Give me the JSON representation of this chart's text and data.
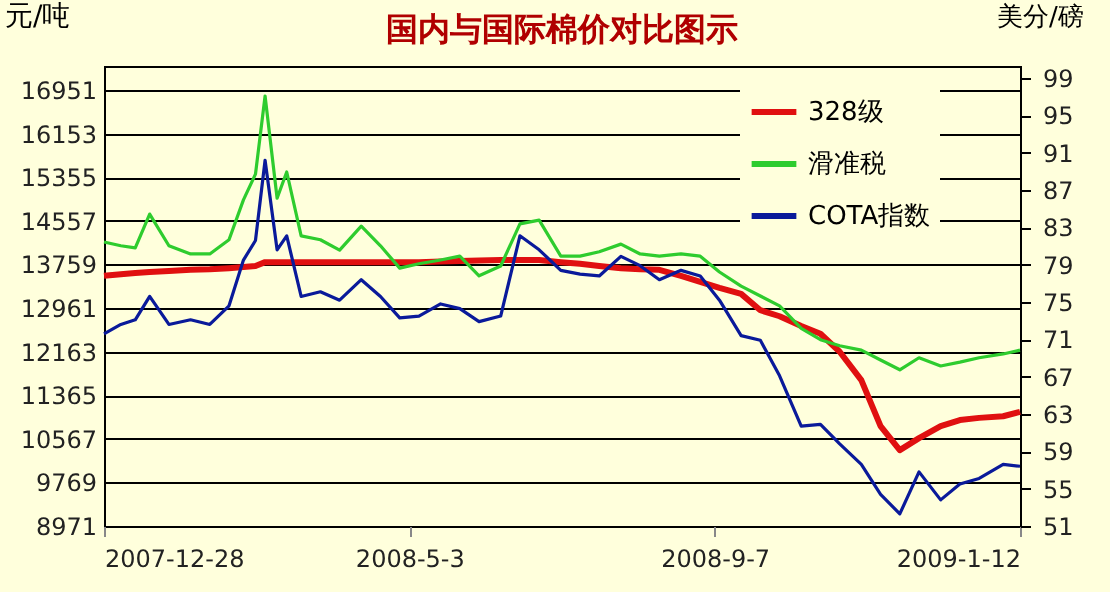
{
  "chart_data": {
    "type": "line",
    "title": "国内与国际棉价对比图示",
    "ylabel": "元/吨",
    "y2label": "美分/磅",
    "x": [
      "2007-12-28",
      "2008-01-04",
      "2008-01-10",
      "2008-01-16",
      "2008-01-24",
      "2008-02-02",
      "2008-02-10",
      "2008-02-18",
      "2008-02-24",
      "2008-02-29",
      "2008-03-04",
      "2008-03-09",
      "2008-03-13",
      "2008-03-19",
      "2008-03-27",
      "2008-04-04",
      "2008-04-13",
      "2008-04-21",
      "2008-04-29",
      "2008-05-07",
      "2008-05-16",
      "2008-05-24",
      "2008-06-01",
      "2008-06-10",
      "2008-06-18",
      "2008-06-26",
      "2008-07-05",
      "2008-07-13",
      "2008-07-21",
      "2008-07-30",
      "2008-08-07",
      "2008-08-15",
      "2008-08-24",
      "2008-09-01",
      "2008-09-09",
      "2008-09-18",
      "2008-09-26",
      "2008-10-04",
      "2008-10-13",
      "2008-10-21",
      "2008-10-29",
      "2008-11-07",
      "2008-11-15",
      "2008-11-23",
      "2008-12-01",
      "2008-12-10",
      "2008-12-18",
      "2008-12-26",
      "2009-01-05",
      "2009-01-12"
    ],
    "series": [
      {
        "name": "328级",
        "color": "#e01010",
        "values": [
          13550,
          13580,
          13600,
          13620,
          13640,
          13660,
          13670,
          13690,
          13710,
          13730,
          13800,
          13800,
          13800,
          13800,
          13800,
          13800,
          13800,
          13800,
          13800,
          13800,
          13810,
          13820,
          13830,
          13840,
          13840,
          13840,
          13800,
          13770,
          13730,
          13690,
          13670,
          13660,
          13550,
          13440,
          13330,
          13220,
          12920,
          12810,
          12630,
          12490,
          12160,
          11640,
          10800,
          10360,
          10580,
          10800,
          10910,
          10950,
          10980,
          11060
        ]
      },
      {
        "name": "滑准税",
        "color": "#2ecc2e",
        "values": [
          14170,
          14100,
          14060,
          14680,
          14100,
          13950,
          13950,
          14210,
          14940,
          15410,
          16840,
          14970,
          15450,
          14280,
          14210,
          14020,
          14460,
          14100,
          13690,
          13770,
          13840,
          13910,
          13550,
          13730,
          14500,
          14570,
          13910,
          13910,
          13990,
          14130,
          13950,
          13910,
          13950,
          13910,
          13620,
          13360,
          13180,
          13000,
          12590,
          12380,
          12270,
          12190,
          12010,
          11830,
          12050,
          11900,
          11970,
          12050,
          12120,
          12190
        ]
      },
      {
        "name": "COTA指数",
        "color": "#0a1a9a",
        "axis": "y2",
        "values": [
          71.6,
          72.6,
          73.1,
          75.6,
          72.6,
          73.1,
          72.6,
          74.6,
          79.5,
          81.6,
          90.2,
          80.6,
          82.1,
          75.6,
          76.1,
          75.2,
          77.4,
          75.6,
          73.3,
          73.5,
          74.8,
          74.3,
          72.9,
          73.5,
          82.1,
          80.6,
          78.4,
          78.0,
          77.8,
          79.9,
          78.9,
          77.4,
          78.4,
          77.8,
          75.2,
          71.4,
          70.9,
          67.1,
          61.7,
          61.9,
          59.8,
          57.6,
          54.4,
          52.3,
          56.8,
          53.8,
          55.5,
          56.1,
          57.6,
          57.4
        ]
      }
    ],
    "xlim": [
      "2007-12-28",
      "2009-01-12"
    ],
    "xticks": [
      {
        "value": "2007-12-28",
        "label": "2007-12-28"
      },
      {
        "value": "2008-05-03",
        "label": "2008-5-3"
      },
      {
        "value": "2008-09-07",
        "label": "2008-9-7"
      },
      {
        "value": "2009-01-12",
        "label": "2009-1-12"
      }
    ],
    "ylim": [
      8971,
      17390
    ],
    "yticks": [
      8971,
      9769,
      10567,
      11365,
      12163,
      12961,
      13759,
      14557,
      15355,
      16153,
      16951
    ],
    "y2lim": [
      51,
      100.3
    ],
    "y2ticks": [
      51,
      55,
      59,
      63,
      67,
      71,
      75,
      79,
      83,
      87,
      91,
      95,
      99
    ],
    "grid": "y",
    "legend": "top right"
  }
}
